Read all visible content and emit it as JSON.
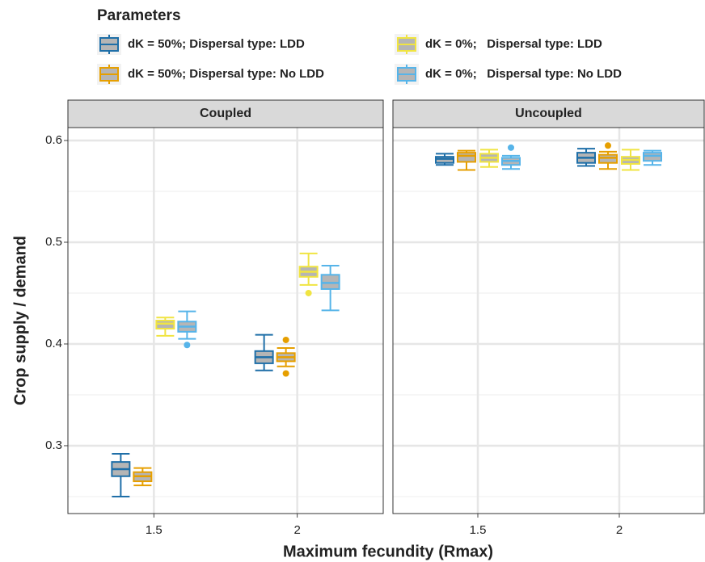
{
  "chart_data": {
    "type": "box",
    "legend_title": "Parameters",
    "x_label": "Maximum fecundity (Rmax)",
    "y_label": "Crop supply / demand",
    "categories": [
      "1.5",
      "2"
    ],
    "ylim": [
      0.2333,
      0.6127
    ],
    "yticks": [
      0.3,
      0.4,
      0.5,
      0.6
    ],
    "minor_yticks": [
      0.25,
      0.35,
      0.45,
      0.55
    ],
    "grid": true,
    "box_fill": "#b5b5b5",
    "series": [
      {
        "name": "dK = 50%; Dispersal type: LDD",
        "color": "#1f6fa8"
      },
      {
        "name": "dK = 50%; Dispersal type: No LDD",
        "color": "#e69f00"
      },
      {
        "name": "dK = 0%;   Dispersal type: LDD",
        "color": "#f0e442"
      },
      {
        "name": "dK = 0%;   Dispersal type: No LDD",
        "color": "#56b4e9"
      }
    ],
    "facets": [
      {
        "title": "Coupled",
        "boxes": [
          [
            {
              "low": 0.25,
              "q1": 0.27,
              "median": 0.277,
              "q3": 0.284,
              "high": 0.292,
              "outliers": []
            },
            {
              "low": 0.374,
              "q1": 0.381,
              "median": 0.387,
              "q3": 0.393,
              "high": 0.409,
              "outliers": []
            }
          ],
          [
            {
              "low": 0.261,
              "q1": 0.265,
              "median": 0.27,
              "q3": 0.274,
              "high": 0.278,
              "outliers": []
            },
            {
              "low": 0.378,
              "q1": 0.383,
              "median": 0.387,
              "q3": 0.391,
              "high": 0.396,
              "outliers": [
                0.404,
                0.371
              ]
            }
          ],
          [
            {
              "low": 0.408,
              "q1": 0.415,
              "median": 0.42,
              "q3": 0.423,
              "high": 0.426,
              "outliers": []
            },
            {
              "low": 0.458,
              "q1": 0.466,
              "median": 0.471,
              "q3": 0.476,
              "high": 0.489,
              "outliers": [
                0.45
              ]
            }
          ],
          [
            {
              "low": 0.405,
              "q1": 0.412,
              "median": 0.417,
              "q3": 0.422,
              "high": 0.432,
              "outliers": [
                0.399
              ]
            },
            {
              "low": 0.433,
              "q1": 0.454,
              "median": 0.46,
              "q3": 0.468,
              "high": 0.477,
              "outliers": []
            }
          ]
        ]
      },
      {
        "title": "Uncoupled",
        "boxes": [
          [
            {
              "low": 0.576,
              "q1": 0.578,
              "median": 0.582,
              "q3": 0.584,
              "high": 0.587,
              "outliers": []
            },
            {
              "low": 0.575,
              "q1": 0.578,
              "median": 0.583,
              "q3": 0.588,
              "high": 0.592,
              "outliers": []
            }
          ],
          [
            {
              "low": 0.571,
              "q1": 0.579,
              "median": 0.585,
              "q3": 0.588,
              "high": 0.59,
              "outliers": []
            },
            {
              "low": 0.572,
              "q1": 0.578,
              "median": 0.583,
              "q3": 0.586,
              "high": 0.589,
              "outliers": [
                0.595
              ]
            }
          ],
          [
            {
              "low": 0.574,
              "q1": 0.579,
              "median": 0.583,
              "q3": 0.587,
              "high": 0.591,
              "outliers": []
            },
            {
              "low": 0.571,
              "q1": 0.577,
              "median": 0.581,
              "q3": 0.584,
              "high": 0.591,
              "outliers": []
            }
          ],
          [
            {
              "low": 0.572,
              "q1": 0.576,
              "median": 0.58,
              "q3": 0.583,
              "high": 0.585,
              "outliers": [
                0.593
              ]
            },
            {
              "low": 0.576,
              "q1": 0.58,
              "median": 0.585,
              "q3": 0.588,
              "high": 0.59,
              "outliers": []
            }
          ]
        ]
      }
    ]
  }
}
